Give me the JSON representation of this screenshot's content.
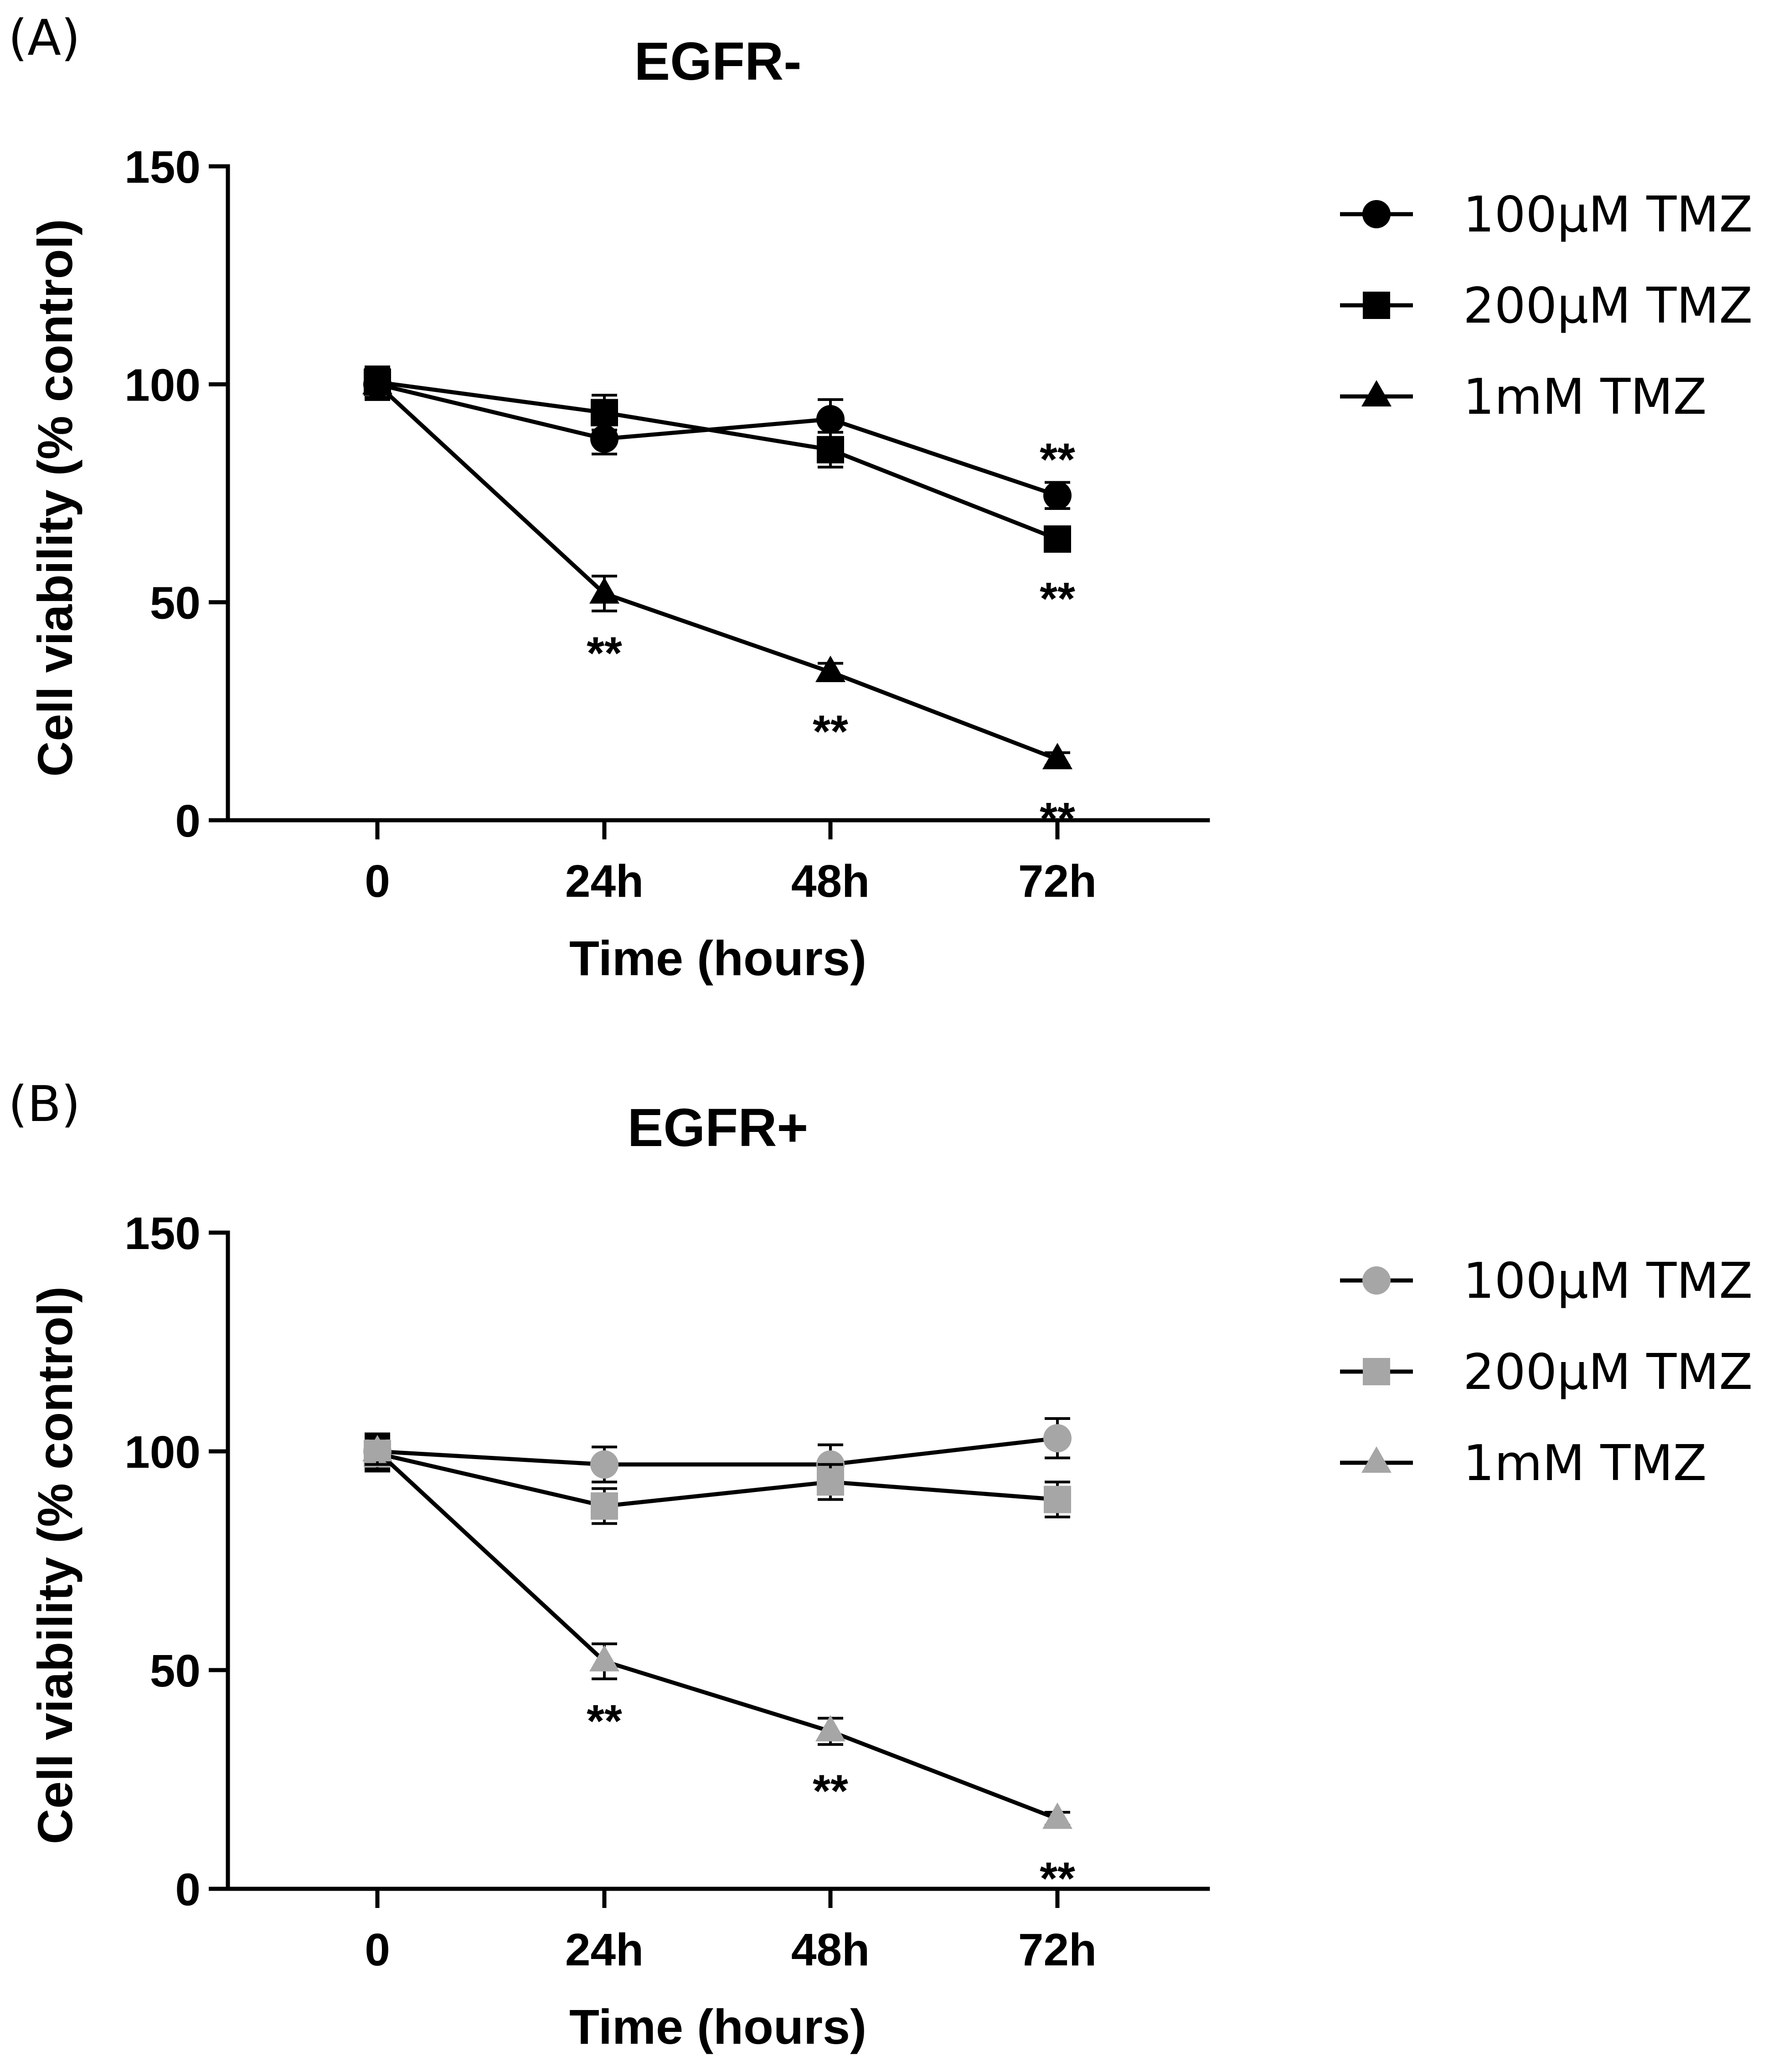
{
  "chart_data": [
    {
      "type": "line",
      "panel_label": "(A)",
      "title": "EGFR-",
      "xlabel": "Time (hours)",
      "ylabel": "Cell viability (% control)",
      "categories": [
        "0",
        "24h",
        "48h",
        "72h"
      ],
      "ylim": [
        0,
        150
      ],
      "yticks": [
        "0",
        "50",
        "100",
        "150"
      ],
      "color": "#000000",
      "legend_position": "right",
      "series": [
        {
          "name": "100μM TMZ",
          "marker": "circle",
          "values": [
            100,
            87.5,
            92,
            74.5
          ],
          "errors": [
            3.5,
            3.5,
            4.5,
            3
          ]
        },
        {
          "name": "200μM TMZ",
          "marker": "square",
          "values": [
            100.5,
            93.5,
            85,
            64.5
          ],
          "errors": [
            3.5,
            4,
            4,
            2
          ]
        },
        {
          "name": "1mM TMZ",
          "marker": "triangle",
          "values": [
            100,
            52,
            34,
            14
          ],
          "errors": [
            3,
            4,
            2,
            1.5
          ]
        }
      ],
      "annotations": [
        {
          "text": "**",
          "series": "100μM TMZ",
          "x": "72h",
          "side": "above"
        },
        {
          "text": "**",
          "series": "200μM TMZ",
          "x": "72h",
          "side": "below"
        },
        {
          "text": "**",
          "series": "1mM TMZ",
          "x": "24h",
          "side": "below"
        },
        {
          "text": "**",
          "series": "1mM TMZ",
          "x": "48h",
          "side": "below"
        },
        {
          "text": "**",
          "series": "1mM TMZ",
          "x": "72h",
          "side": "below"
        }
      ]
    },
    {
      "type": "line",
      "panel_label": "(B)",
      "title": "EGFR+",
      "xlabel": "Time (hours)",
      "ylabel": "Cell viability (% control)",
      "categories": [
        "0",
        "24h",
        "48h",
        "72h"
      ],
      "ylim": [
        0,
        150
      ],
      "yticks": [
        "0",
        "50",
        "100",
        "150"
      ],
      "color": "#a6a6a6",
      "legend_position": "right",
      "series": [
        {
          "name": "100μM TMZ",
          "marker": "circle",
          "values": [
            100,
            97,
            97,
            103
          ],
          "errors": [
            4,
            4,
            4.5,
            4.5
          ]
        },
        {
          "name": "200μM TMZ",
          "marker": "square",
          "values": [
            99.5,
            87.5,
            93,
            89
          ],
          "errors": [
            4,
            4,
            4,
            4
          ]
        },
        {
          "name": "1mM TMZ",
          "marker": "triangle",
          "values": [
            100,
            52,
            36,
            16
          ],
          "errors": [
            3,
            4,
            3,
            1.5
          ]
        }
      ],
      "annotations": [
        {
          "text": "**",
          "series": "1mM TMZ",
          "x": "24h",
          "side": "below"
        },
        {
          "text": "**",
          "series": "1mM TMZ",
          "x": "48h",
          "side": "below"
        },
        {
          "text": "**",
          "series": "1mM TMZ",
          "x": "72h",
          "side": "below"
        }
      ]
    }
  ]
}
